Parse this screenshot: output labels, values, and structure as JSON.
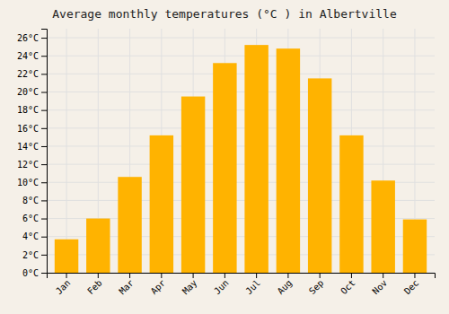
{
  "chart_data": {
    "type": "bar",
    "title": "Average monthly temperatures (°C ) in Albertville",
    "categories": [
      "Jan",
      "Feb",
      "Mar",
      "Apr",
      "May",
      "Jun",
      "Jul",
      "Aug",
      "Sep",
      "Oct",
      "Nov",
      "Dec"
    ],
    "values": [
      3.7,
      6.0,
      10.6,
      15.2,
      19.5,
      23.2,
      25.2,
      24.8,
      21.5,
      15.2,
      10.2,
      5.9
    ],
    "color": "#FFB300",
    "ylim": [
      0,
      27
    ],
    "yticks": [
      {
        "value": 0,
        "label": "0°C"
      },
      {
        "value": 2,
        "label": "2°C"
      },
      {
        "value": 4,
        "label": "4°C"
      },
      {
        "value": 6,
        "label": "6°C"
      },
      {
        "value": 8,
        "label": "8°C"
      },
      {
        "value": 10,
        "label": "10°C"
      },
      {
        "value": 12,
        "label": "12°C"
      },
      {
        "value": 14,
        "label": "14°C"
      },
      {
        "value": 16,
        "label": "16°C"
      },
      {
        "value": 18,
        "label": "18°C"
      },
      {
        "value": 20,
        "label": "20°C"
      },
      {
        "value": 22,
        "label": "22°C"
      },
      {
        "value": 24,
        "label": "24°C"
      },
      {
        "value": 26,
        "label": "26°C"
      }
    ],
    "grid": true
  }
}
